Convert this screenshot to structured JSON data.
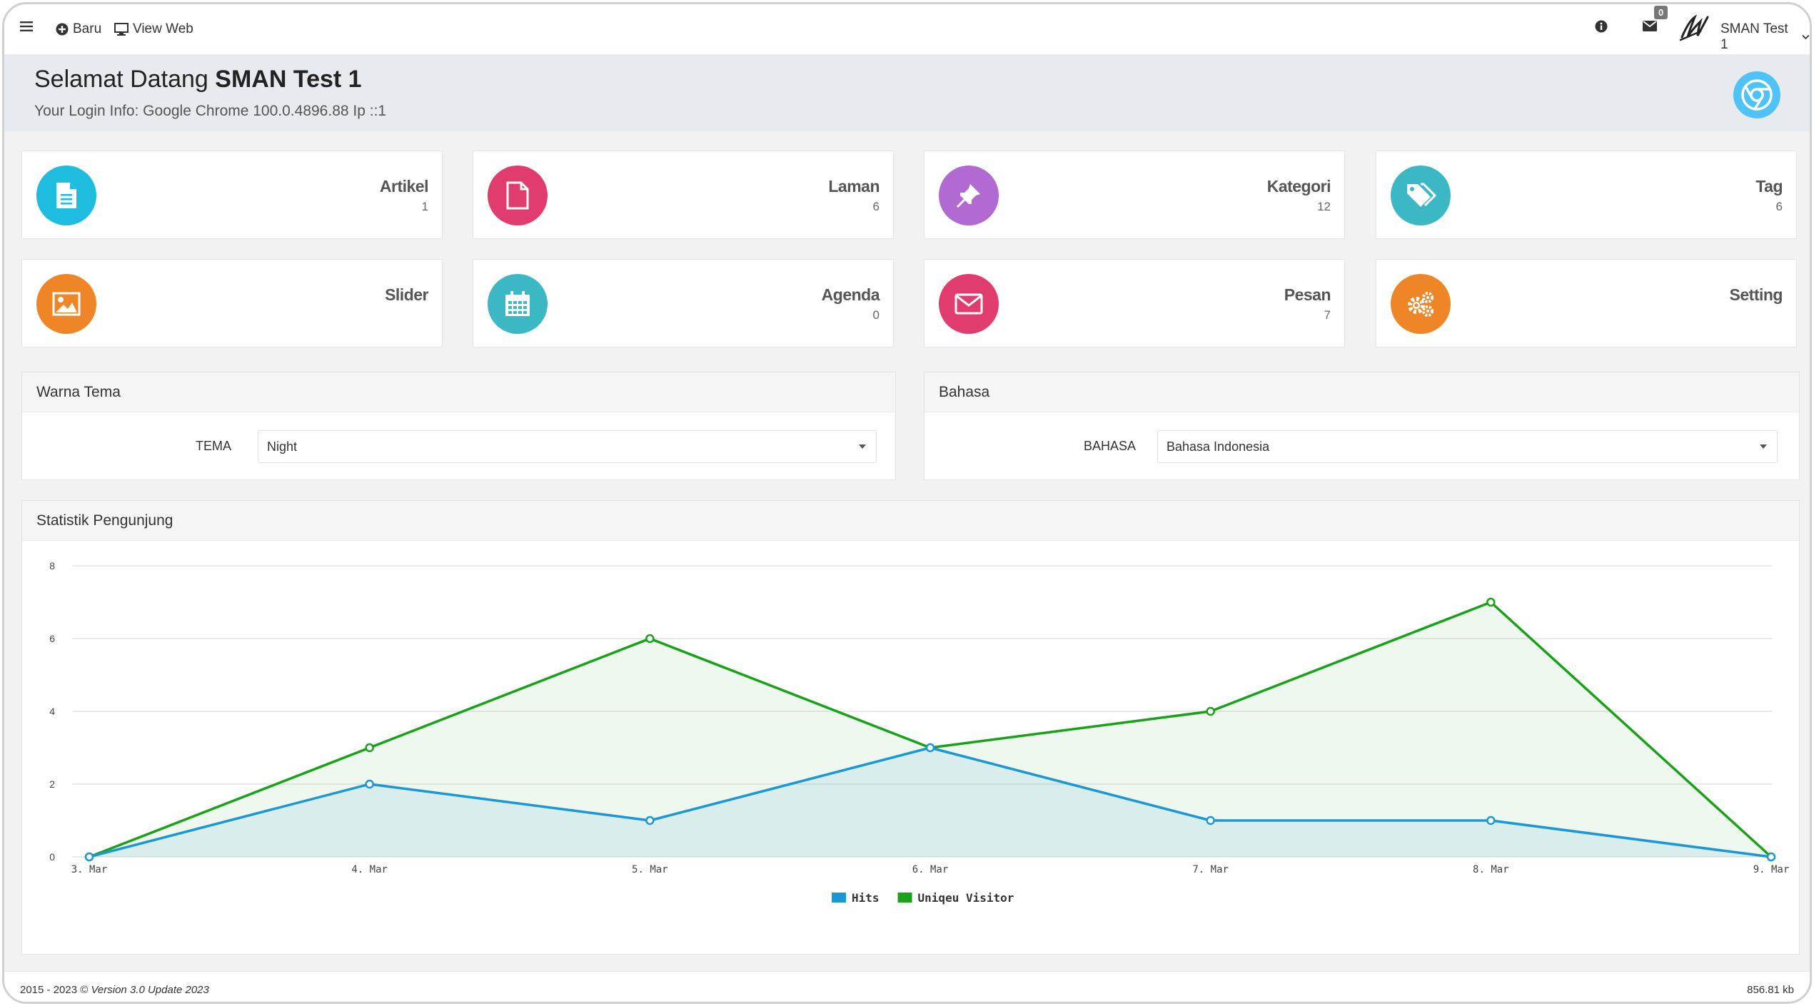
{
  "topbar": {
    "new_label": "Baru",
    "view_web_label": "View Web",
    "mail_count": "0",
    "user_name": "SMAN Test 1"
  },
  "welcome": {
    "greeting": "Selamat Datang",
    "school": "SMAN Test 1",
    "login_info": "Your Login Info: Google Chrome 100.0.4896.88 Ip ::1"
  },
  "stats": [
    {
      "title": "Artikel",
      "count": "1",
      "color": "#1ebde0",
      "icon": "file-text-icon"
    },
    {
      "title": "Laman",
      "count": "6",
      "color": "#e03c6e",
      "icon": "file-icon"
    },
    {
      "title": "Kategori",
      "count": "12",
      "color": "#b06ad1",
      "icon": "pin-icon"
    },
    {
      "title": "Tag",
      "count": "6",
      "color": "#3bb8c3",
      "icon": "tags-icon"
    },
    {
      "title": "Slider",
      "count": "",
      "color": "#ee8627",
      "icon": "image-icon"
    },
    {
      "title": "Agenda",
      "count": "0",
      "color": "#3bb8c3",
      "icon": "calendar-icon"
    },
    {
      "title": "Pesan",
      "count": "7",
      "color": "#e03c6e",
      "icon": "envelope-icon"
    },
    {
      "title": "Setting",
      "count": "",
      "color": "#ee8627",
      "icon": "gears-icon"
    }
  ],
  "theme_panel": {
    "title": "Warna Tema",
    "label": "TEMA",
    "value": "Night"
  },
  "language_panel": {
    "title": "Bahasa",
    "label": "BAHASA",
    "value": "Bahasa Indonesia"
  },
  "stats_panel": {
    "title": "Statistik Pengunjung"
  },
  "chart_data": {
    "type": "area",
    "categories": [
      "3. Mar",
      "4. Mar",
      "5. Mar",
      "6. Mar",
      "7. Mar",
      "8. Mar",
      "9. Mar"
    ],
    "series": [
      {
        "name": "Hits",
        "values": [
          0,
          2,
          1,
          3,
          1,
          1,
          0
        ],
        "color": "#1a97d6"
      },
      {
        "name": "Uniqeu Visitor",
        "values": [
          0,
          3,
          6,
          3,
          4,
          7,
          0
        ],
        "color": "#1aa11a"
      }
    ],
    "ylim": [
      0,
      8
    ],
    "yticks": [
      "0",
      "2",
      "4",
      "6",
      "8"
    ],
    "grid": true,
    "legend": "bottom-center"
  },
  "footer": {
    "copyright": "2015 - 2023 ©",
    "version": "Version 3.0 Update 2023",
    "size": "856.81 kb"
  }
}
